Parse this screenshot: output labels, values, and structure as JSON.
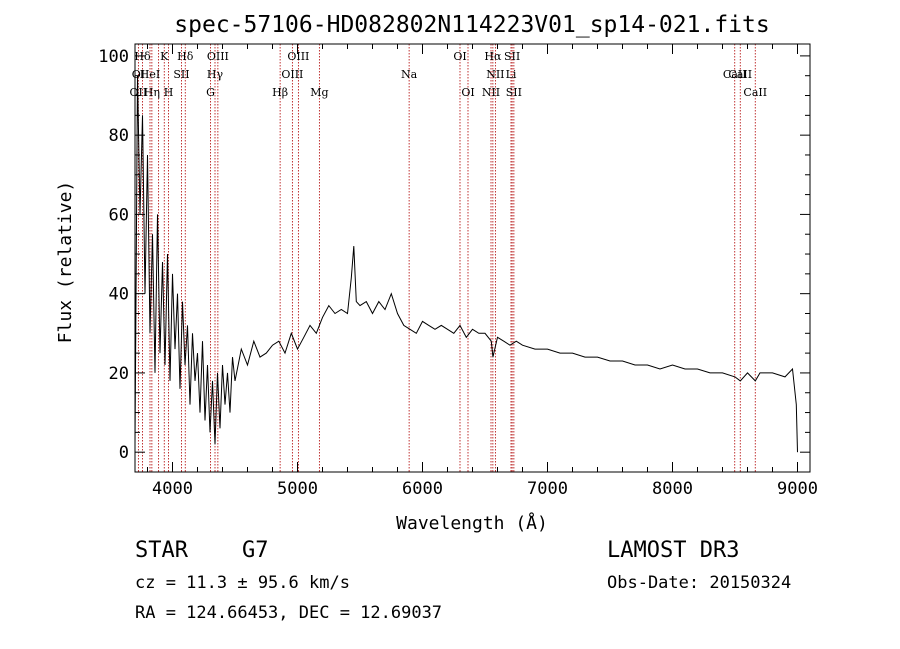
{
  "chart_data": {
    "type": "line",
    "title": "spec-57106-HD082802N114223V01_sp14-021.fits",
    "xlabel": "Wavelength (Å)",
    "ylabel": "Flux (relative)",
    "xlim": [
      3700,
      9100
    ],
    "ylim": [
      -5,
      103
    ],
    "xticks": [
      4000,
      5000,
      6000,
      7000,
      8000,
      9000
    ],
    "yticks": [
      0,
      20,
      40,
      60,
      80,
      100
    ],
    "grid": false,
    "series": [
      {
        "name": "spectrum",
        "x": [
          3700,
          3720,
          3740,
          3760,
          3780,
          3800,
          3820,
          3840,
          3860,
          3880,
          3900,
          3920,
          3940,
          3960,
          3980,
          4000,
          4020,
          4040,
          4060,
          4080,
          4100,
          4120,
          4140,
          4160,
          4180,
          4200,
          4220,
          4240,
          4260,
          4280,
          4300,
          4320,
          4340,
          4360,
          4380,
          4400,
          4420,
          4440,
          4460,
          4480,
          4500,
          4550,
          4600,
          4650,
          4700,
          4750,
          4800,
          4850,
          4900,
          4950,
          5000,
          5050,
          5100,
          5150,
          5200,
          5250,
          5300,
          5350,
          5400,
          5430,
          5450,
          5470,
          5500,
          5550,
          5600,
          5650,
          5700,
          5750,
          5800,
          5850,
          5900,
          5950,
          6000,
          6050,
          6100,
          6150,
          6200,
          6250,
          6300,
          6350,
          6400,
          6450,
          6500,
          6550,
          6563,
          6600,
          6650,
          6700,
          6750,
          6800,
          6900,
          7000,
          7100,
          7200,
          7300,
          7400,
          7500,
          7600,
          7700,
          7800,
          7900,
          8000,
          8100,
          8200,
          8300,
          8400,
          8500,
          8542,
          8600,
          8662,
          8700,
          8800,
          8900,
          8960,
          8990,
          9000
        ],
        "y": [
          2,
          95,
          60,
          85,
          40,
          75,
          30,
          55,
          20,
          60,
          25,
          48,
          22,
          50,
          18,
          45,
          26,
          40,
          16,
          38,
          22,
          32,
          12,
          30,
          18,
          25,
          10,
          28,
          8,
          22,
          5,
          18,
          2,
          20,
          6,
          22,
          12,
          20,
          10,
          24,
          18,
          26,
          22,
          28,
          24,
          25,
          27,
          28,
          25,
          30,
          26,
          29,
          32,
          30,
          34,
          37,
          35,
          36,
          35,
          44,
          52,
          38,
          37,
          38,
          35,
          38,
          36,
          40,
          35,
          32,
          31,
          30,
          33,
          32,
          31,
          32,
          31,
          30,
          32,
          29,
          31,
          30,
          30,
          28,
          24,
          29,
          28,
          27,
          28,
          27,
          26,
          26,
          25,
          25,
          24,
          24,
          23,
          23,
          22,
          22,
          21,
          22,
          21,
          21,
          20,
          20,
          19,
          18,
          20,
          18,
          20,
          20,
          19,
          21,
          12,
          0
        ]
      }
    ],
    "lines": {
      "top_row": [
        {
          "label": "Hδ",
          "x": 3760
        },
        {
          "label": "K",
          "x": 3934
        },
        {
          "label": "Hδ",
          "x": 4102
        },
        {
          "label": "OIII",
          "x": 4363
        },
        {
          "label": "OIII",
          "x": 5007
        },
        {
          "label": "OI",
          "x": 6300
        },
        {
          "label": "Hα",
          "x": 6563
        },
        {
          "label": "SII",
          "x": 6717
        }
      ],
      "middle_row": [
        {
          "label": "OI",
          "x": 3727
        },
        {
          "label": "HeI",
          "x": 3820
        },
        {
          "label": "SII",
          "x": 4072
        },
        {
          "label": "Hγ",
          "x": 4340
        },
        {
          "label": "OIII",
          "x": 4959
        },
        {
          "label": "Na",
          "x": 5893
        },
        {
          "label": "NII",
          "x": 6583
        },
        {
          "label": "Li",
          "x": 6708
        },
        {
          "label": "CaII",
          "x": 8542
        },
        {
          "label": "CaII",
          "x": 8498
        }
      ],
      "bottom_row": [
        {
          "label": "OII",
          "x": 3727
        },
        {
          "label": "Hη",
          "x": 3835
        },
        {
          "label": "H",
          "x": 3968
        },
        {
          "label": "G",
          "x": 4304
        },
        {
          "label": "Hβ",
          "x": 4861
        },
        {
          "label": "Mg",
          "x": 5175
        },
        {
          "label": "OI",
          "x": 6364
        },
        {
          "label": "NII",
          "x": 6548
        },
        {
          "label": "SII",
          "x": 6731
        },
        {
          "label": "CaII",
          "x": 8662
        }
      ]
    },
    "line_color": "#b00000",
    "vline_positions": [
      3727,
      3760,
      3820,
      3835,
      3889,
      3934,
      3968,
      4072,
      4102,
      4304,
      4340,
      4363,
      4861,
      4959,
      5007,
      5175,
      5893,
      6300,
      6364,
      6548,
      6563,
      6583,
      6708,
      6717,
      6731,
      8498,
      8542,
      8662
    ]
  },
  "info": {
    "object_type": "STAR",
    "subclass": "G7",
    "survey": "LAMOST DR3",
    "redshift": "cz = 11.3 ± 95.6 km/s",
    "obs_date": "Obs-Date: 20150324",
    "coords": "RA = 124.66453, DEC =  12.69037"
  }
}
